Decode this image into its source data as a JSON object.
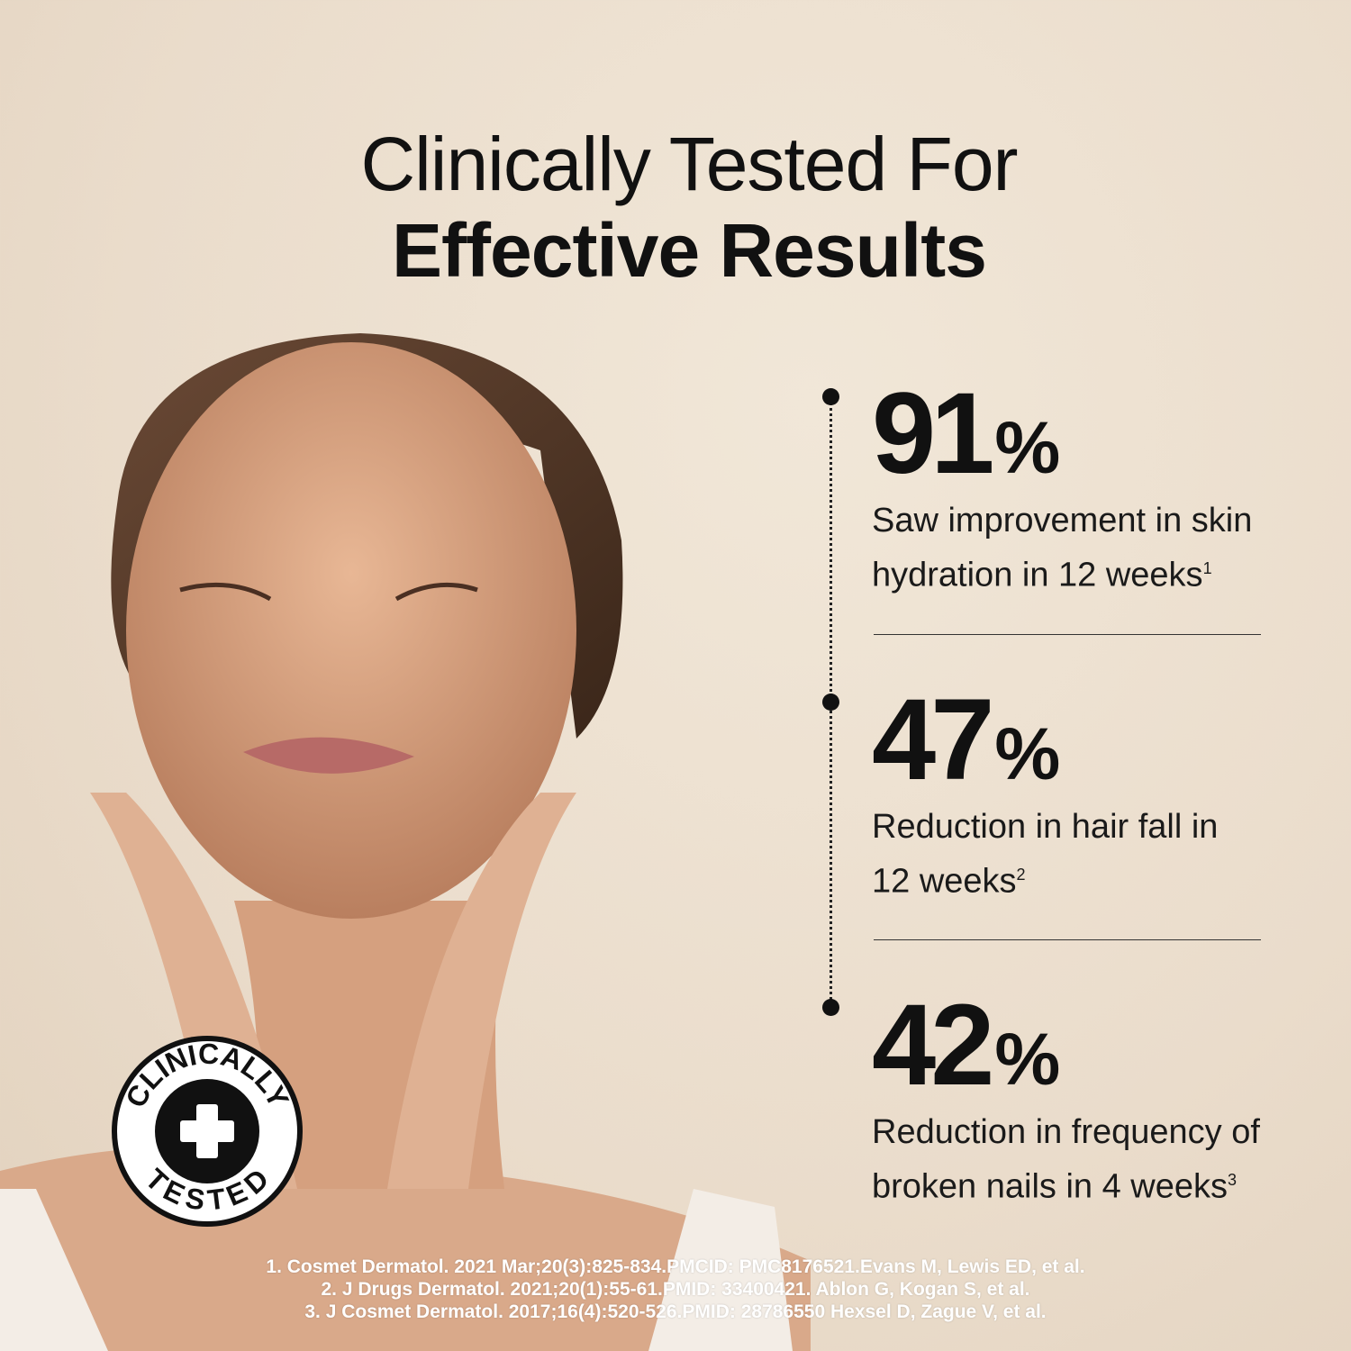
{
  "title": {
    "line1": "Clinically Tested For",
    "line2": "Effective Results"
  },
  "stats": [
    {
      "value": "91",
      "unit": "%",
      "text": "Saw improvement in skin hydration in 12 weeks",
      "ref": "1"
    },
    {
      "value": "47",
      "unit": "%",
      "text": "Reduction in hair fall in 12 weeks",
      "ref": "2"
    },
    {
      "value": "42",
      "unit": "%",
      "text": "Reduction in frequency of broken nails in 4 weeks",
      "ref": "3"
    }
  ],
  "badge": {
    "top_text": "CLINICALLY",
    "bottom_text": "TESTED",
    "icon": "plus-icon"
  },
  "references": [
    "1. Cosmet Dermatol. 2021 Mar;20(3):825-834.PMCID: PMC8176521.Evans M, Lewis ED, et al.",
    "2. J Drugs Dermatol. 2021;20(1):55-61.PMID: 33400421. Ablon G, Kogan S, et al.",
    "3. J Cosmet Dermatol. 2017;16(4):520-526.PMID: 28786550 Hexsel D, Zague V, et al."
  ],
  "colors": {
    "background": "#ece0cf",
    "text": "#111111",
    "reference_text": "#ffffff"
  }
}
